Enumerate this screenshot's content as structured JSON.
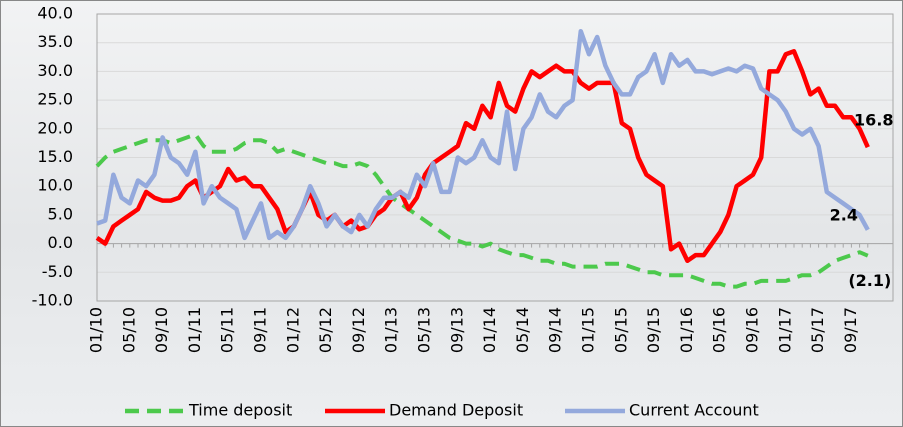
{
  "chart_data": {
    "type": "line",
    "categories": [
      "01/10",
      null,
      null,
      null,
      "05/10",
      null,
      null,
      null,
      "09/10",
      null,
      null,
      null,
      "01/11",
      null,
      null,
      null,
      "05/11",
      null,
      null,
      null,
      "09/11",
      null,
      null,
      null,
      "01/12",
      null,
      null,
      null,
      "05/12",
      null,
      null,
      null,
      "09/12",
      null,
      null,
      null,
      "01/13",
      null,
      null,
      null,
      "05/13",
      null,
      null,
      null,
      "09/13",
      null,
      null,
      null,
      "01/14",
      null,
      null,
      null,
      "05/14",
      null,
      null,
      null,
      "09/14",
      null,
      null,
      null,
      "01/15",
      null,
      null,
      null,
      "05/15",
      null,
      null,
      null,
      "09/15",
      null,
      null,
      null,
      "01/16",
      null,
      null,
      null,
      "05/16",
      null,
      null,
      null,
      "09/16",
      null,
      null,
      null,
      "01/17",
      null,
      null,
      null,
      "05/17",
      null,
      null,
      null,
      "09/17",
      null,
      null
    ],
    "series": [
      {
        "name": "Time deposit",
        "color": "#4cc94c",
        "dash": true,
        "values": [
          13.5,
          15,
          16,
          16.5,
          17,
          17.5,
          18,
          18,
          18,
          17.5,
          18,
          18.5,
          19,
          17,
          16,
          16,
          16,
          16.5,
          17.5,
          18,
          18,
          17.5,
          16,
          16.5,
          16,
          15.5,
          15,
          14.5,
          14,
          14,
          13.5,
          13.5,
          14,
          13.5,
          12,
          10,
          8,
          7,
          6,
          5,
          4,
          3,
          2,
          1,
          0.5,
          0,
          0,
          -0.5,
          0,
          -1,
          -1.5,
          -2,
          -2,
          -2.5,
          -3,
          -3,
          -3.5,
          -3.5,
          -4,
          -4,
          -4,
          -4,
          -3.5,
          -3.5,
          -3.5,
          -4,
          -4.5,
          -5,
          -5,
          -5.5,
          -5.5,
          -5.5,
          -5.5,
          -6,
          -6.5,
          -7,
          -7,
          -7.5,
          -7.5,
          -7,
          -7,
          -6.5,
          -6.5,
          -6.5,
          -6.5,
          -6,
          -5.5,
          -5.5,
          -5,
          -4,
          -3,
          -2.5,
          -2,
          -1.5,
          -2.1
        ],
        "value_labels": [
          null,
          null,
          null,
          null,
          null,
          null,
          null,
          null,
          null,
          null,
          null,
          null,
          null,
          null,
          null,
          null,
          null,
          null,
          null,
          null,
          null,
          null,
          null,
          null,
          null,
          null,
          null,
          null,
          null,
          null,
          null,
          null,
          null,
          null,
          null,
          null,
          null,
          null,
          null,
          null,
          null,
          null,
          null,
          null,
          null,
          null,
          null,
          null,
          null,
          null,
          null,
          null,
          null,
          null,
          null,
          null,
          null,
          null,
          null,
          null,
          null,
          null,
          null,
          null,
          null,
          null,
          null,
          null,
          null,
          null,
          null,
          null,
          null,
          null,
          null,
          null,
          null,
          null,
          null,
          null,
          null,
          null,
          null,
          null,
          null,
          null,
          null,
          null,
          null,
          null,
          null,
          null,
          null,
          null,
          "(2.1)"
        ]
      },
      {
        "name": "Demand Deposit",
        "color": "#ff0000",
        "dash": false,
        "values": [
          1,
          0,
          3,
          4,
          5,
          6,
          9,
          8,
          7.5,
          7.5,
          8,
          10,
          11,
          8,
          9,
          10,
          13,
          11,
          11.5,
          10,
          10,
          8,
          6,
          2,
          3,
          6,
          9,
          5,
          4,
          5,
          3,
          4,
          2.5,
          3,
          5,
          6,
          8,
          9,
          6,
          8,
          12,
          14,
          15,
          16,
          17,
          21,
          20,
          24,
          22,
          28,
          24,
          23,
          27,
          30,
          29,
          30,
          31,
          30,
          30,
          28,
          27,
          28,
          28,
          28,
          21,
          20,
          15,
          12,
          11,
          10,
          -1,
          0,
          -3,
          -2,
          -2,
          0,
          2,
          5,
          10,
          11,
          12,
          15,
          30,
          30,
          33,
          33.5,
          30,
          26,
          27,
          24,
          24,
          22,
          22,
          20,
          16.8
        ],
        "value_labels": [
          null,
          null,
          null,
          null,
          null,
          null,
          null,
          null,
          null,
          null,
          null,
          null,
          null,
          null,
          null,
          null,
          null,
          null,
          null,
          null,
          null,
          null,
          null,
          null,
          null,
          null,
          null,
          null,
          null,
          null,
          null,
          null,
          null,
          null,
          null,
          null,
          null,
          null,
          null,
          null,
          null,
          null,
          null,
          null,
          null,
          null,
          null,
          null,
          null,
          null,
          null,
          null,
          null,
          null,
          null,
          null,
          null,
          null,
          null,
          null,
          null,
          null,
          null,
          null,
          null,
          null,
          null,
          null,
          null,
          null,
          null,
          null,
          null,
          null,
          null,
          null,
          null,
          null,
          null,
          null,
          null,
          null,
          null,
          null,
          null,
          null,
          null,
          null,
          null,
          null,
          null,
          null,
          null,
          null,
          "16.8"
        ]
      },
      {
        "name": "Current Account",
        "color": "#94a9dc",
        "dash": false,
        "values": [
          3.5,
          4,
          12,
          8,
          7,
          11,
          10,
          12,
          18.5,
          15,
          14,
          12,
          16,
          7,
          10,
          8,
          7,
          6,
          1,
          4,
          7,
          1,
          2,
          1,
          3,
          6,
          10,
          7,
          3,
          5,
          3,
          2,
          5,
          3,
          6,
          8,
          8,
          9,
          8,
          12,
          10,
          14,
          9,
          9,
          15,
          14,
          15,
          18,
          15,
          14,
          23,
          13,
          20,
          22,
          26,
          23,
          22,
          24,
          25,
          37,
          33,
          36,
          31,
          28,
          26,
          26,
          29,
          30,
          33,
          28,
          33,
          31,
          32,
          30,
          30,
          29.5,
          30,
          30.5,
          30,
          31,
          30.5,
          27,
          26,
          25,
          23,
          20,
          19,
          20,
          17,
          9,
          8,
          7,
          6,
          5,
          2.4
        ],
        "value_labels": [
          null,
          null,
          null,
          null,
          null,
          null,
          null,
          null,
          null,
          null,
          null,
          null,
          null,
          null,
          null,
          null,
          null,
          null,
          null,
          null,
          null,
          null,
          null,
          null,
          null,
          null,
          null,
          null,
          null,
          null,
          null,
          null,
          null,
          null,
          null,
          null,
          null,
          null,
          null,
          null,
          null,
          null,
          null,
          null,
          null,
          null,
          null,
          null,
          null,
          null,
          null,
          null,
          null,
          null,
          null,
          null,
          null,
          null,
          null,
          null,
          null,
          null,
          null,
          null,
          null,
          null,
          null,
          null,
          null,
          null,
          null,
          null,
          null,
          null,
          null,
          null,
          null,
          null,
          null,
          null,
          null,
          null,
          null,
          null,
          null,
          null,
          null,
          null,
          null,
          null,
          null,
          null,
          null,
          null,
          "2.4"
        ]
      }
    ],
    "ylim": [
      -10,
      40
    ],
    "yticks": [
      {
        "value": -10,
        "label": "-10.0"
      },
      {
        "value": -5,
        "label": "-5.0"
      },
      {
        "value": 0,
        "label": "0.0"
      },
      {
        "value": 5,
        "label": "5.0"
      },
      {
        "value": 10,
        "label": "10.0"
      },
      {
        "value": 15,
        "label": "15.0"
      },
      {
        "value": 20,
        "label": "20.0"
      },
      {
        "value": 25,
        "label": "25.0"
      },
      {
        "value": 30,
        "label": "30.0"
      },
      {
        "value": 35,
        "label": "35.0"
      },
      {
        "value": 40,
        "label": "40.0"
      }
    ],
    "grid": true,
    "legend": "bottom"
  }
}
